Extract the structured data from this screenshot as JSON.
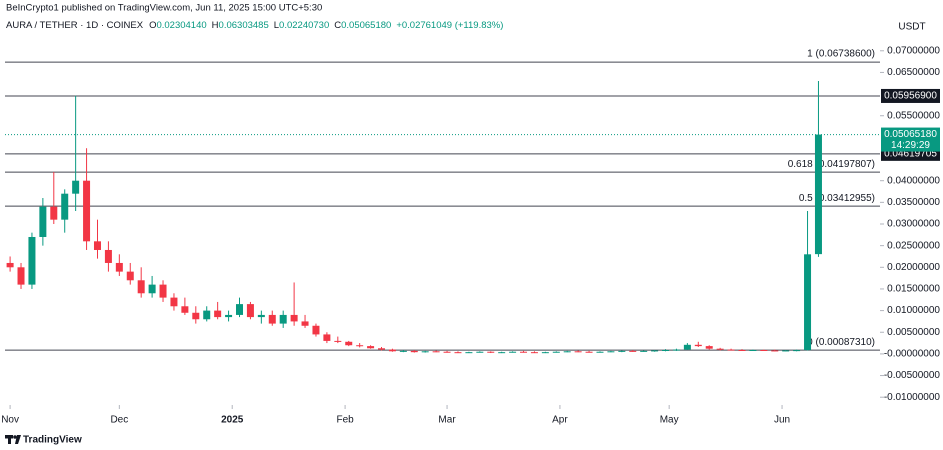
{
  "chart_data": {
    "type": "candlestick",
    "attribution": "BeInCrypto1 published on TradingView.com, Jun 11, 2025 15:00 UTC+5:30",
    "symbol": "AURA / TETHER · 1D · COINEX",
    "ohlc_legend": [
      {
        "label": "O",
        "value": "0.02304140"
      },
      {
        "label": "H",
        "value": "0.06303485"
      },
      {
        "label": "L",
        "value": "0.02240730"
      },
      {
        "label": "C",
        "value": "0.05065180"
      }
    ],
    "change": "+0.02761049 (+119.83%)",
    "currency": "USDT",
    "brand": "TradingView",
    "up_color": "#089981",
    "down_color": "#f23645",
    "x": [
      0,
      3,
      6,
      9,
      12,
      15,
      18,
      21,
      24,
      27,
      30,
      33,
      36,
      39,
      42,
      45,
      48,
      51,
      54,
      57,
      60,
      63,
      66,
      69,
      72,
      75,
      78,
      81,
      84,
      87,
      90,
      93,
      96,
      99,
      102,
      105,
      108,
      111,
      114,
      117,
      120,
      123,
      126,
      129,
      132,
      135,
      138,
      141,
      144,
      147,
      150,
      153,
      156,
      159,
      162,
      165,
      168,
      171,
      174,
      177,
      180,
      183,
      186,
      189,
      192,
      195,
      198,
      201,
      204,
      207,
      210,
      213,
      216,
      219,
      222
    ],
    "open": [
      0.021,
      0.02,
      0.016,
      0.027,
      0.034,
      0.031,
      0.037,
      0.04,
      0.026,
      0.024,
      0.021,
      0.019,
      0.017,
      0.014,
      0.016,
      0.013,
      0.011,
      0.0095,
      0.008,
      0.01,
      0.0085,
      0.009,
      0.0115,
      0.0085,
      0.009,
      0.007,
      0.009,
      0.0075,
      0.0065,
      0.0045,
      0.003,
      0.0028,
      0.002,
      0.0018,
      0.0013,
      0.001,
      0.0006,
      0.0007,
      0.0004,
      0.0006,
      0.0005,
      0.0004,
      0.0003,
      0.0004,
      0.0005,
      0.0003,
      0.0004,
      0.0005,
      0.0004,
      0.0003,
      0.0004,
      0.0005,
      0.0006,
      0.0005,
      0.0004,
      0.0005,
      0.0006,
      0.0007,
      0.0006,
      0.0007,
      0.0008,
      0.0009,
      0.001,
      0.0021,
      0.0018,
      0.0012,
      0.001,
      0.0009,
      0.0008,
      0.0009,
      0.0008,
      0.0007,
      0.0008,
      0.0008731,
      0.0230414
    ],
    "high": [
      0.0225,
      0.021,
      0.028,
      0.036,
      0.042,
      0.038,
      0.0596,
      0.0475,
      0.031,
      0.026,
      0.023,
      0.021,
      0.02,
      0.018,
      0.017,
      0.014,
      0.013,
      0.011,
      0.011,
      0.012,
      0.01,
      0.013,
      0.012,
      0.01,
      0.01,
      0.01,
      0.0165,
      0.009,
      0.007,
      0.005,
      0.004,
      0.003,
      0.0025,
      0.002,
      0.0016,
      0.0012,
      0.0009,
      0.0009,
      0.0007,
      0.0008,
      0.0007,
      0.0006,
      0.0005,
      0.0006,
      0.0006,
      0.0005,
      0.0006,
      0.0007,
      0.0006,
      0.0005,
      0.0006,
      0.0007,
      0.0008,
      0.0007,
      0.0006,
      0.0007,
      0.0008,
      0.0009,
      0.0008,
      0.0009,
      0.0011,
      0.0012,
      0.0025,
      0.0028,
      0.002,
      0.0014,
      0.0012,
      0.0011,
      0.001,
      0.001,
      0.001,
      0.0009,
      0.001,
      0.033,
      0.06303485
    ],
    "low": [
      0.019,
      0.015,
      0.015,
      0.025,
      0.03,
      0.028,
      0.033,
      0.024,
      0.022,
      0.019,
      0.018,
      0.016,
      0.013,
      0.013,
      0.012,
      0.01,
      0.009,
      0.007,
      0.0075,
      0.008,
      0.0075,
      0.0085,
      0.008,
      0.007,
      0.0065,
      0.006,
      0.0065,
      0.006,
      0.004,
      0.0025,
      0.0025,
      0.0018,
      0.0015,
      0.0012,
      0.0008,
      0.0005,
      0.0004,
      0.0003,
      0.0003,
      0.0004,
      0.0003,
      0.0002,
      0.0002,
      0.0003,
      0.0002,
      0.0002,
      0.0003,
      0.0003,
      0.0002,
      0.0002,
      0.0003,
      0.0004,
      0.0004,
      0.0003,
      0.0003,
      0.0004,
      0.0004,
      0.0005,
      0.0005,
      0.0005,
      0.0006,
      0.0007,
      0.0009,
      0.0016,
      0.001,
      0.0008,
      0.0008,
      0.0007,
      0.0007,
      0.0007,
      0.0006,
      0.0006,
      0.0006,
      0.0008,
      0.0224073
    ],
    "close": [
      0.02,
      0.016,
      0.027,
      0.034,
      0.031,
      0.037,
      0.04,
      0.026,
      0.024,
      0.021,
      0.019,
      0.017,
      0.014,
      0.016,
      0.013,
      0.011,
      0.0095,
      0.008,
      0.01,
      0.0085,
      0.009,
      0.0115,
      0.0085,
      0.009,
      0.007,
      0.009,
      0.0075,
      0.0065,
      0.0045,
      0.003,
      0.0028,
      0.002,
      0.0018,
      0.0013,
      0.001,
      0.0006,
      0.0007,
      0.0004,
      0.0006,
      0.0005,
      0.0004,
      0.0003,
      0.0004,
      0.0005,
      0.0003,
      0.0004,
      0.0005,
      0.0004,
      0.0003,
      0.0004,
      0.0005,
      0.0006,
      0.0005,
      0.0004,
      0.0005,
      0.0006,
      0.0007,
      0.0006,
      0.0007,
      0.0008,
      0.0009,
      0.001,
      0.0021,
      0.0018,
      0.0012,
      0.001,
      0.0009,
      0.0008,
      0.0009,
      0.0008,
      0.0007,
      0.0008,
      0.0008731,
      0.023,
      0.0506518
    ],
    "xlim": [
      -1.4,
      238.9
    ],
    "xticks": [
      {
        "value": 0,
        "label": "Nov"
      },
      {
        "value": 30,
        "label": "Dec"
      },
      {
        "value": 61,
        "label": "2025"
      },
      {
        "value": 92,
        "label": "Feb"
      },
      {
        "value": 120,
        "label": "Mar"
      },
      {
        "value": 151,
        "label": "Apr"
      },
      {
        "value": 181,
        "label": "May"
      },
      {
        "value": 212,
        "label": "Jun"
      }
    ],
    "ylim": [
      -0.0118,
      0.0748
    ],
    "yticks": [
      {
        "value": 0.07,
        "label": "0.07000000"
      },
      {
        "value": 0.065,
        "label": "0.06500000"
      },
      {
        "value": 0.055,
        "label": "0.05500000"
      },
      {
        "value": 0.04,
        "label": "0.04000000"
      },
      {
        "value": 0.035,
        "label": "0.03500000"
      },
      {
        "value": 0.03,
        "label": "0.03000000"
      },
      {
        "value": 0.025,
        "label": "0.02500000"
      },
      {
        "value": 0.02,
        "label": "0.02000000"
      },
      {
        "value": 0.015,
        "label": "0.01500000"
      },
      {
        "value": 0.01,
        "label": "0.01000000"
      },
      {
        "value": 0.005,
        "label": "0.00500000"
      },
      {
        "value": 0,
        "label": "-0.00000000"
      },
      {
        "value": -0.005,
        "label": "-0.00500000"
      },
      {
        "value": -0.01,
        "label": "-0.01000000"
      }
    ],
    "levels": [
      {
        "value": 0.067386,
        "label": "1 (0.06738600)"
      },
      {
        "value": 0.04197807,
        "label": "0.618 (0.04197807)"
      },
      {
        "value": 0.03412955,
        "label": "0.5 (0.03412955)"
      },
      {
        "value": 0.0008731,
        "label": "0 (0.00087310)"
      }
    ],
    "price_tags": [
      {
        "value": 0.059569,
        "label": "0.05956900"
      },
      {
        "value": 0.04619705,
        "label": "0.04619705"
      }
    ],
    "last_price": {
      "value": 0.0506518,
      "label": "0.05065180",
      "countdown": "14:29:29"
    }
  }
}
